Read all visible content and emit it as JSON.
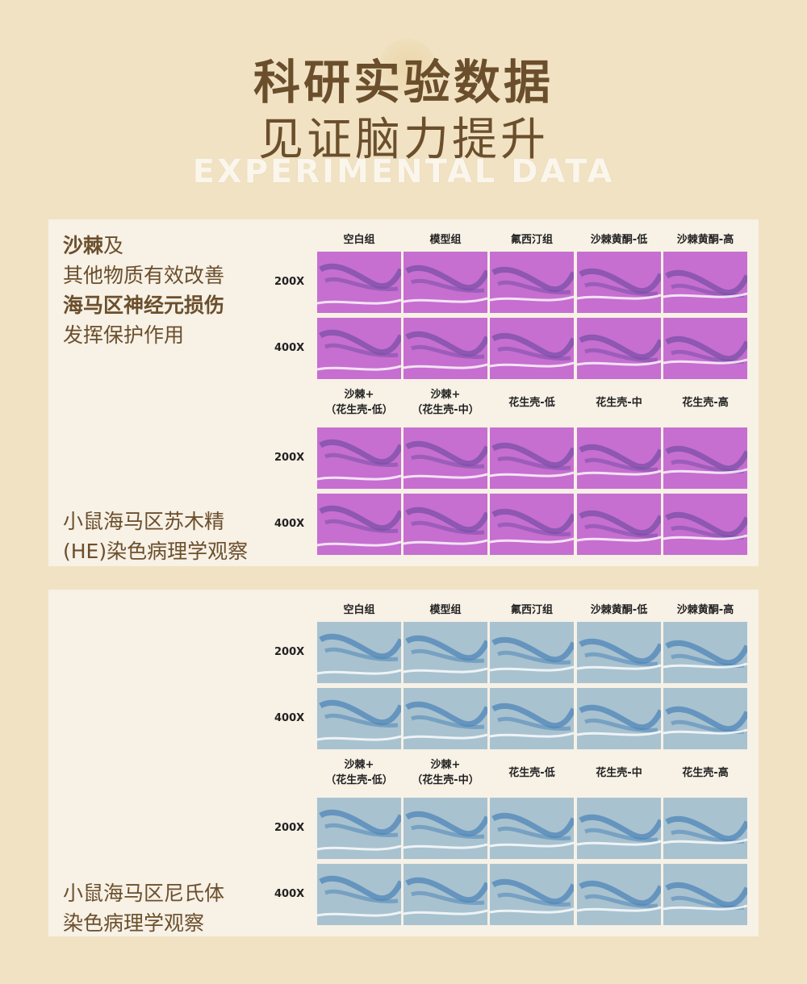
{
  "header": {
    "title_line1": "科研实验数据",
    "title_line2": "见证脑力提升",
    "title_en": "EXPERIMENTAL DATA"
  },
  "panel1": {
    "intro": {
      "line1_bold": "沙棘",
      "line1_rest": "及",
      "line2": "其他物质有效改善",
      "line3_bold": "海马区神经元损伤",
      "line4": "发挥保护作用"
    },
    "caption": {
      "line1": "小鼠海马区苏木精",
      "line2": "(HE)染色病理学观察"
    },
    "stain_color": "#c66fd0",
    "stain_dark": "#7a4fa8"
  },
  "panel2": {
    "caption": {
      "line1": "小鼠海马区尼氏体",
      "line2": "染色病理学观察"
    },
    "stain_color": "#a9c2cf",
    "stain_dark": "#4f86b8"
  },
  "groups_top": [
    "空白组",
    "模型组",
    "氟西汀组",
    "沙棘黄酮-低",
    "沙棘黄酮-高"
  ],
  "groups_bottom": [
    {
      "line1": "沙棘+",
      "line2": "（花生壳-低）"
    },
    {
      "line1": "沙棘+",
      "line2": "（花生壳-中）"
    },
    {
      "line1": "花生壳-低",
      "line2": ""
    },
    {
      "line1": "花生壳-中",
      "line2": ""
    },
    {
      "line1": "花生壳-高",
      "line2": ""
    }
  ],
  "magnifications": [
    "200X",
    "400X"
  ]
}
